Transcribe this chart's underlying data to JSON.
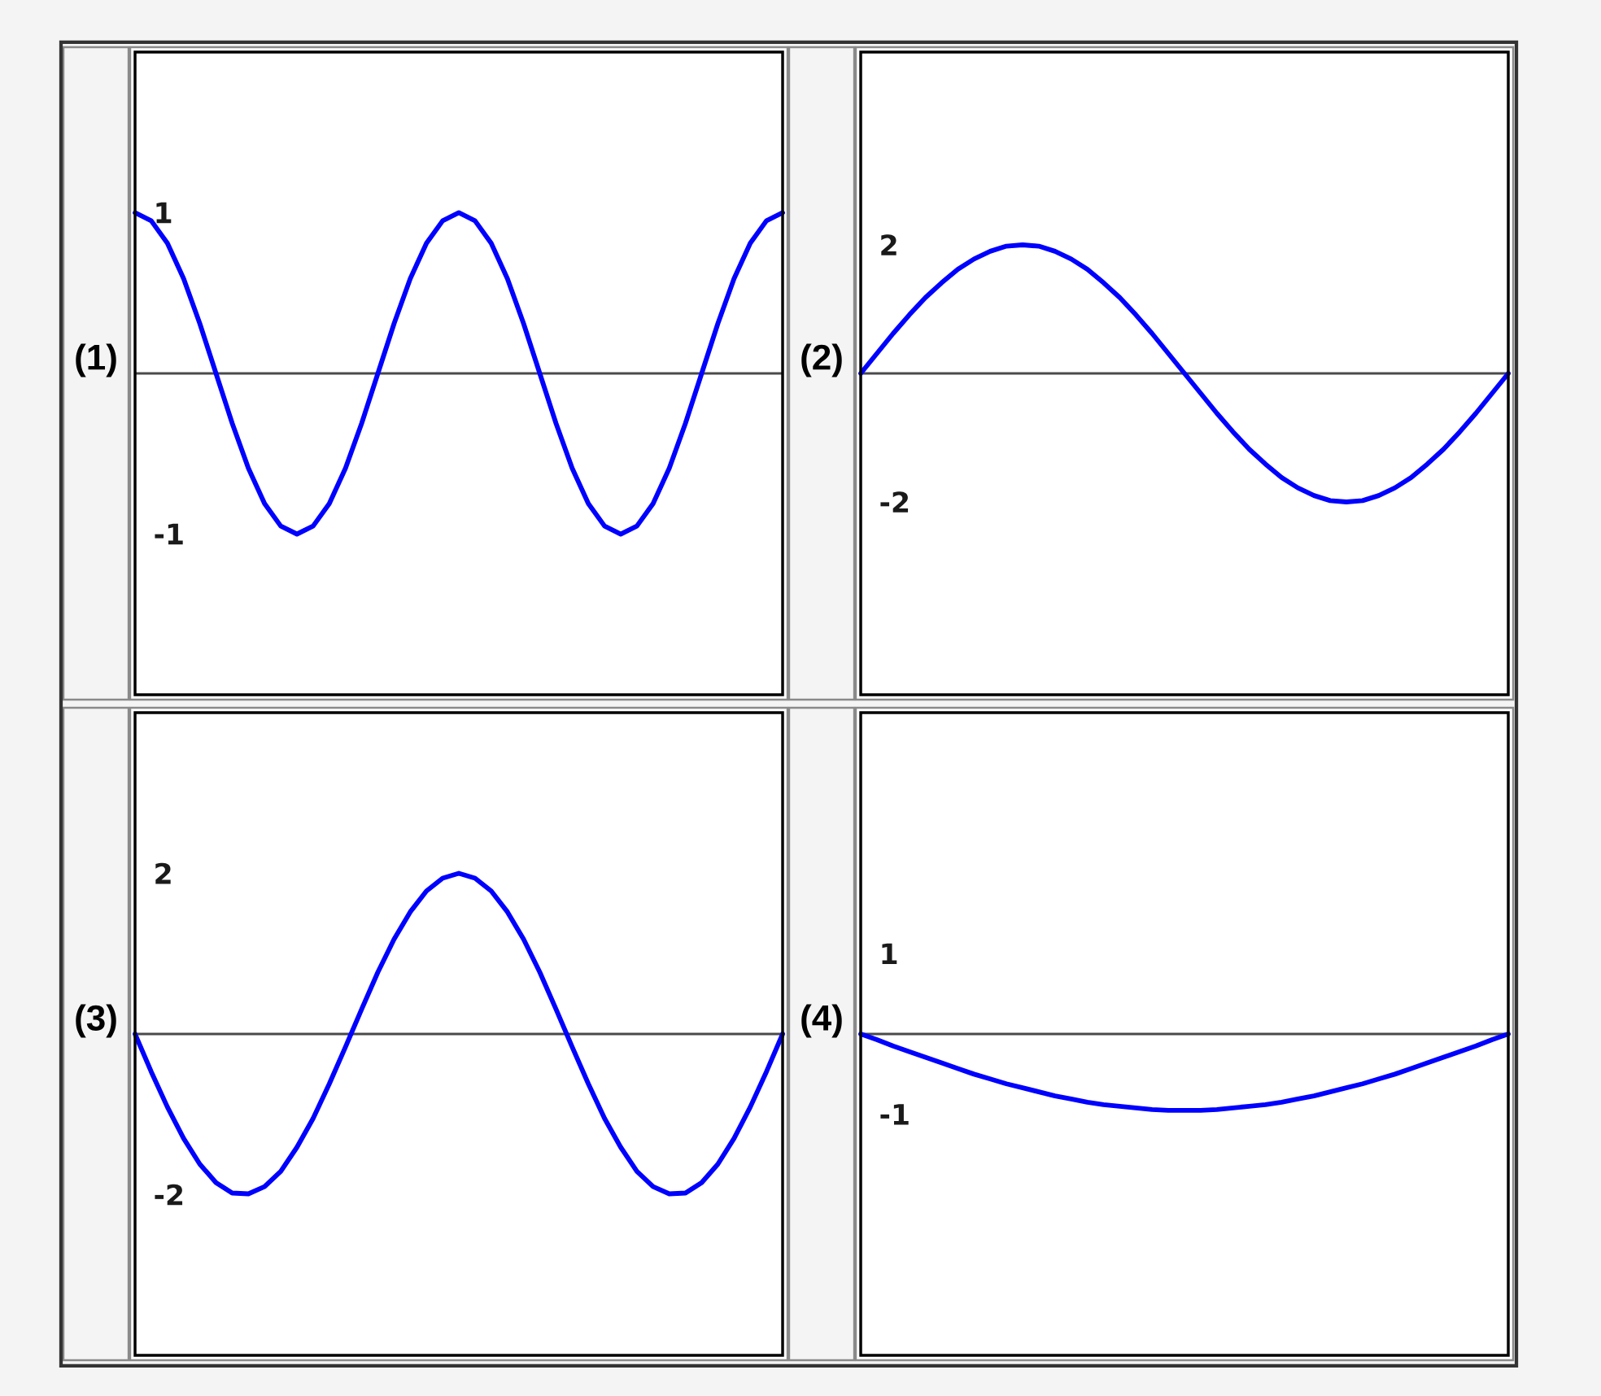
{
  "chart_data": [
    {
      "type": "line",
      "title": "(1)",
      "tick_labels": "y",
      "color": "#0000ff",
      "ylim": [
        -2,
        2
      ],
      "yticks": [
        1,
        -1
      ],
      "categories": [
        null,
        null,
        null,
        null,
        null,
        null,
        null,
        null,
        null,
        null,
        null,
        null,
        null,
        null,
        null,
        null,
        null,
        null,
        null,
        null,
        null,
        null,
        null,
        null,
        null,
        null,
        null,
        null,
        null,
        null,
        null,
        null,
        null,
        null,
        null,
        null,
        null,
        null,
        null,
        null,
        null
      ],
      "values": [
        1,
        0.95,
        0.81,
        0.59,
        0.31,
        0,
        -0.31,
        -0.59,
        -0.81,
        -0.95,
        -1,
        -0.95,
        -0.81,
        -0.59,
        -0.31,
        0,
        0.31,
        0.59,
        0.81,
        0.95,
        1,
        0.95,
        0.81,
        0.59,
        0.31,
        0,
        -0.31,
        -0.59,
        -0.81,
        -0.95,
        -1,
        -0.95,
        -0.81,
        -0.59,
        -0.31,
        0,
        0.31,
        0.59,
        0.81,
        0.95,
        1
      ]
    },
    {
      "type": "line",
      "title": "(2)",
      "tick_labels": "y",
      "color": "#0000ff",
      "ylim": [
        -5,
        5
      ],
      "yticks": [
        2,
        -2
      ],
      "categories": [
        null,
        null,
        null,
        null,
        null,
        null,
        null,
        null,
        null,
        null,
        null,
        null,
        null,
        null,
        null,
        null,
        null,
        null,
        null,
        null,
        null,
        null,
        null,
        null,
        null,
        null,
        null,
        null,
        null,
        null,
        null,
        null,
        null,
        null,
        null,
        null,
        null,
        null,
        null,
        null,
        null
      ],
      "values": [
        0,
        0.31,
        0.62,
        0.91,
        1.18,
        1.41,
        1.62,
        1.78,
        1.9,
        1.98,
        2,
        1.98,
        1.9,
        1.78,
        1.62,
        1.41,
        1.18,
        0.91,
        0.62,
        0.31,
        0,
        -0.31,
        -0.62,
        -0.91,
        -1.18,
        -1.41,
        -1.62,
        -1.78,
        -1.9,
        -1.98,
        -2,
        -1.98,
        -1.9,
        -1.78,
        -1.62,
        -1.41,
        -1.18,
        -0.91,
        -0.62,
        -0.31,
        0
      ]
    },
    {
      "type": "line",
      "title": "(3)",
      "tick_labels": "y",
      "color": "#0000ff",
      "ylim": [
        -4,
        4
      ],
      "yticks": [
        2,
        -2
      ],
      "categories": [
        null,
        null,
        null,
        null,
        null,
        null,
        null,
        null,
        null,
        null,
        null,
        null,
        null,
        null,
        null,
        null,
        null,
        null,
        null,
        null,
        null,
        null,
        null,
        null,
        null,
        null,
        null,
        null,
        null,
        null,
        null,
        null,
        null,
        null,
        null,
        null,
        null,
        null,
        null,
        null,
        null
      ],
      "values": [
        0,
        -0.47,
        -0.91,
        -1.3,
        -1.62,
        -1.85,
        -1.98,
        -1.99,
        -1.9,
        -1.71,
        -1.41,
        -1.05,
        -0.62,
        -0.16,
        0.31,
        0.77,
        1.18,
        1.52,
        1.78,
        1.94,
        2,
        1.94,
        1.78,
        1.52,
        1.18,
        0.77,
        0.31,
        -0.16,
        -0.62,
        -1.05,
        -1.41,
        -1.71,
        -1.9,
        -1.99,
        -1.98,
        -1.85,
        -1.62,
        -1.3,
        -0.91,
        -0.47,
        0
      ]
    },
    {
      "type": "line",
      "title": "(4)",
      "tick_labels": "y",
      "color": "#0000ff",
      "ylim": [
        -4,
        4
      ],
      "yticks": [
        1,
        -1
      ],
      "categories": [
        null,
        null,
        null,
        null,
        null,
        null,
        null,
        null,
        null,
        null,
        null,
        null,
        null,
        null,
        null,
        null,
        null,
        null,
        null,
        null,
        null,
        null,
        null,
        null,
        null,
        null,
        null,
        null,
        null,
        null,
        null,
        null,
        null,
        null,
        null,
        null,
        null,
        null,
        null,
        null,
        null
      ],
      "values": [
        0,
        -0.07,
        -0.15,
        -0.22,
        -0.29,
        -0.36,
        -0.43,
        -0.5,
        -0.56,
        -0.62,
        -0.67,
        -0.72,
        -0.77,
        -0.81,
        -0.85,
        -0.88,
        -0.9,
        -0.92,
        -0.94,
        -0.95,
        -0.95,
        -0.95,
        -0.94,
        -0.92,
        -0.9,
        -0.88,
        -0.85,
        -0.81,
        -0.77,
        -0.72,
        -0.67,
        -0.62,
        -0.56,
        -0.5,
        -0.43,
        -0.36,
        -0.29,
        -0.22,
        -0.15,
        -0.07,
        0
      ]
    }
  ]
}
